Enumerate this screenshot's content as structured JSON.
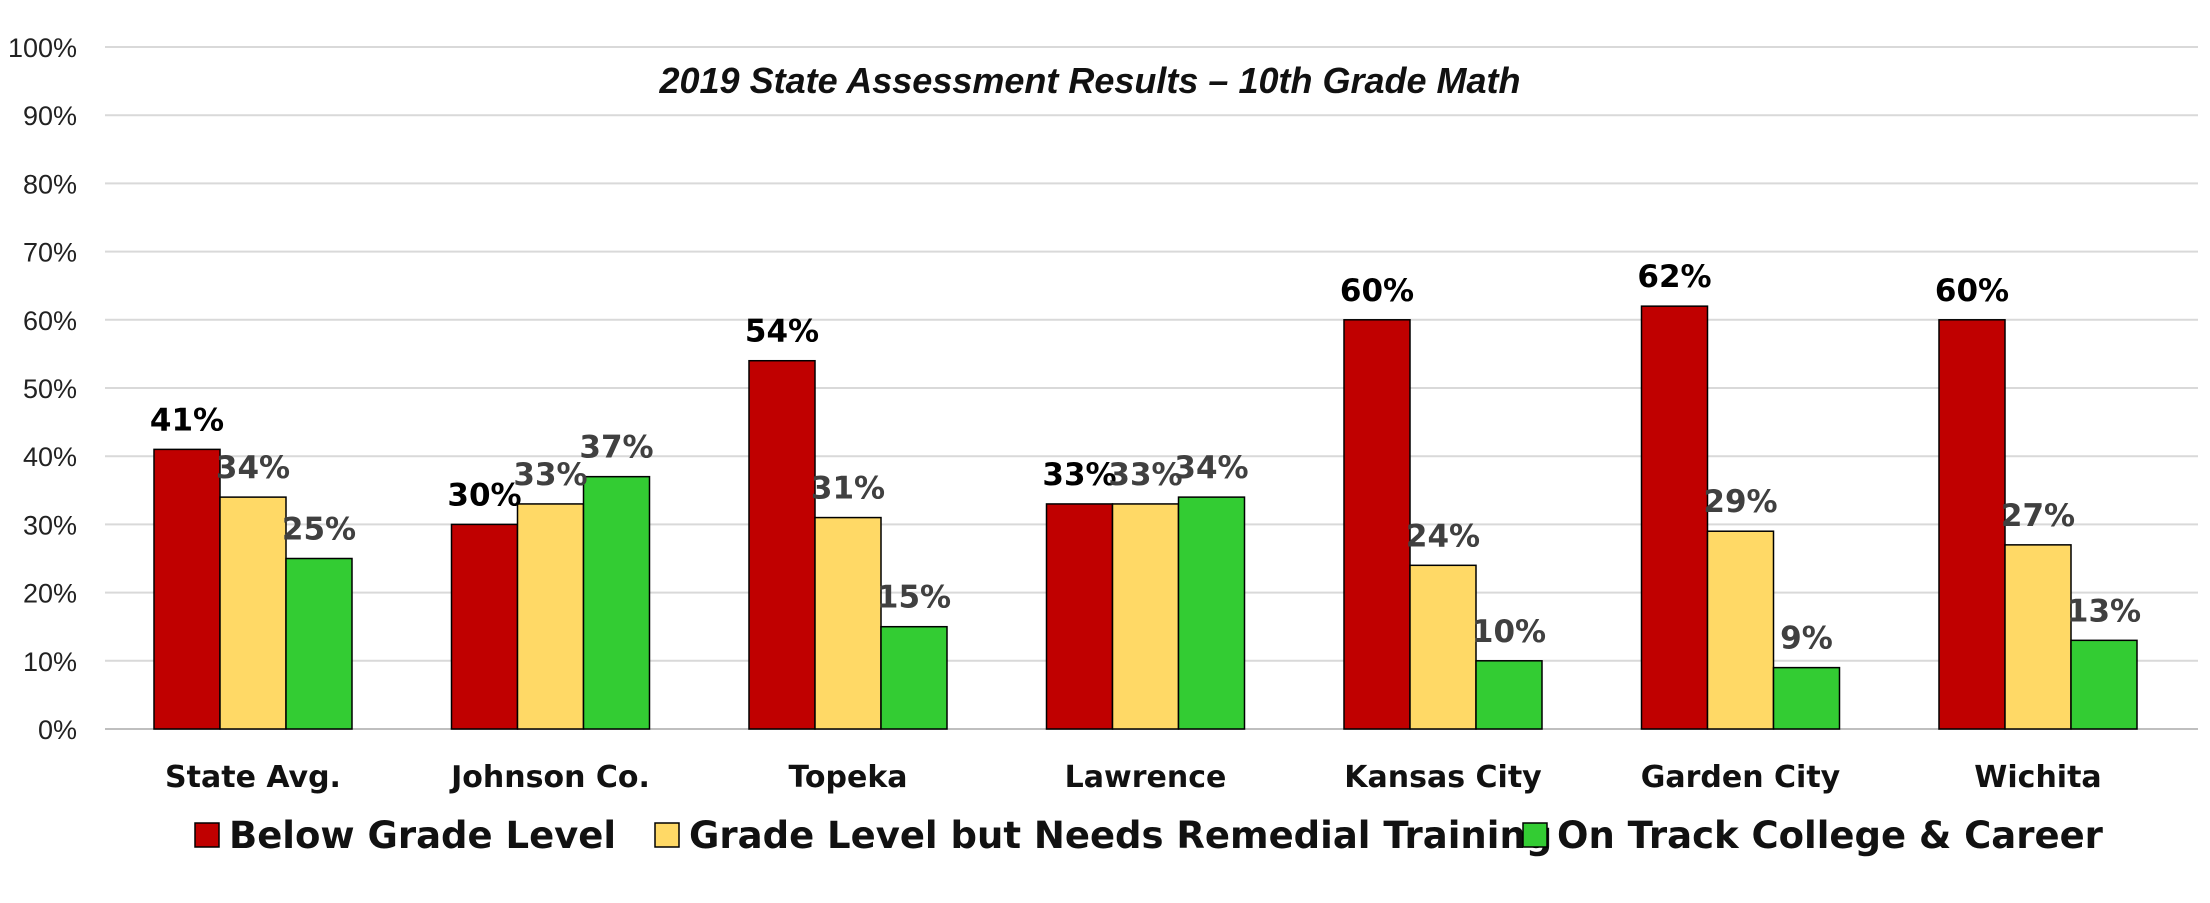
{
  "chart_data": {
    "type": "bar",
    "title": "2019 State Assessment Results – 10th Grade Math",
    "xlabel": "",
    "ylabel": "",
    "ylim": [
      0,
      100
    ],
    "yticks": [
      "0%",
      "10%",
      "20%",
      "30%",
      "40%",
      "50%",
      "60%",
      "70%",
      "80%",
      "90%",
      "100%"
    ],
    "grid": true,
    "legend_position": "bottom",
    "categories": [
      "State Avg.",
      "Johnson Co.",
      "Topeka",
      "Lawrence",
      "Kansas City",
      "Garden City",
      "Wichita"
    ],
    "series": [
      {
        "name": "Below Grade Level",
        "color": "#c00000",
        "label_color": "#000000",
        "values": [
          41,
          30,
          54,
          33,
          60,
          62,
          60
        ],
        "labels": [
          "41%",
          "30%",
          "54%",
          "33%",
          "60%",
          "62%",
          "60%"
        ]
      },
      {
        "name": "Grade Level but Needs Remedial Training",
        "color": "#ffd966",
        "label_color": "#404040",
        "values": [
          34,
          33,
          31,
          33,
          24,
          29,
          27
        ],
        "labels": [
          "34%",
          "33%",
          "31%",
          "33%",
          "24%",
          "29%",
          "27%"
        ]
      },
      {
        "name": "On Track College & Career",
        "color": "#33cc33",
        "label_color": "#404040",
        "values": [
          25,
          37,
          15,
          34,
          10,
          9,
          13
        ],
        "labels": [
          "25%",
          "37%",
          "15%",
          "34%",
          "10%",
          "9%",
          "13%"
        ]
      }
    ]
  }
}
